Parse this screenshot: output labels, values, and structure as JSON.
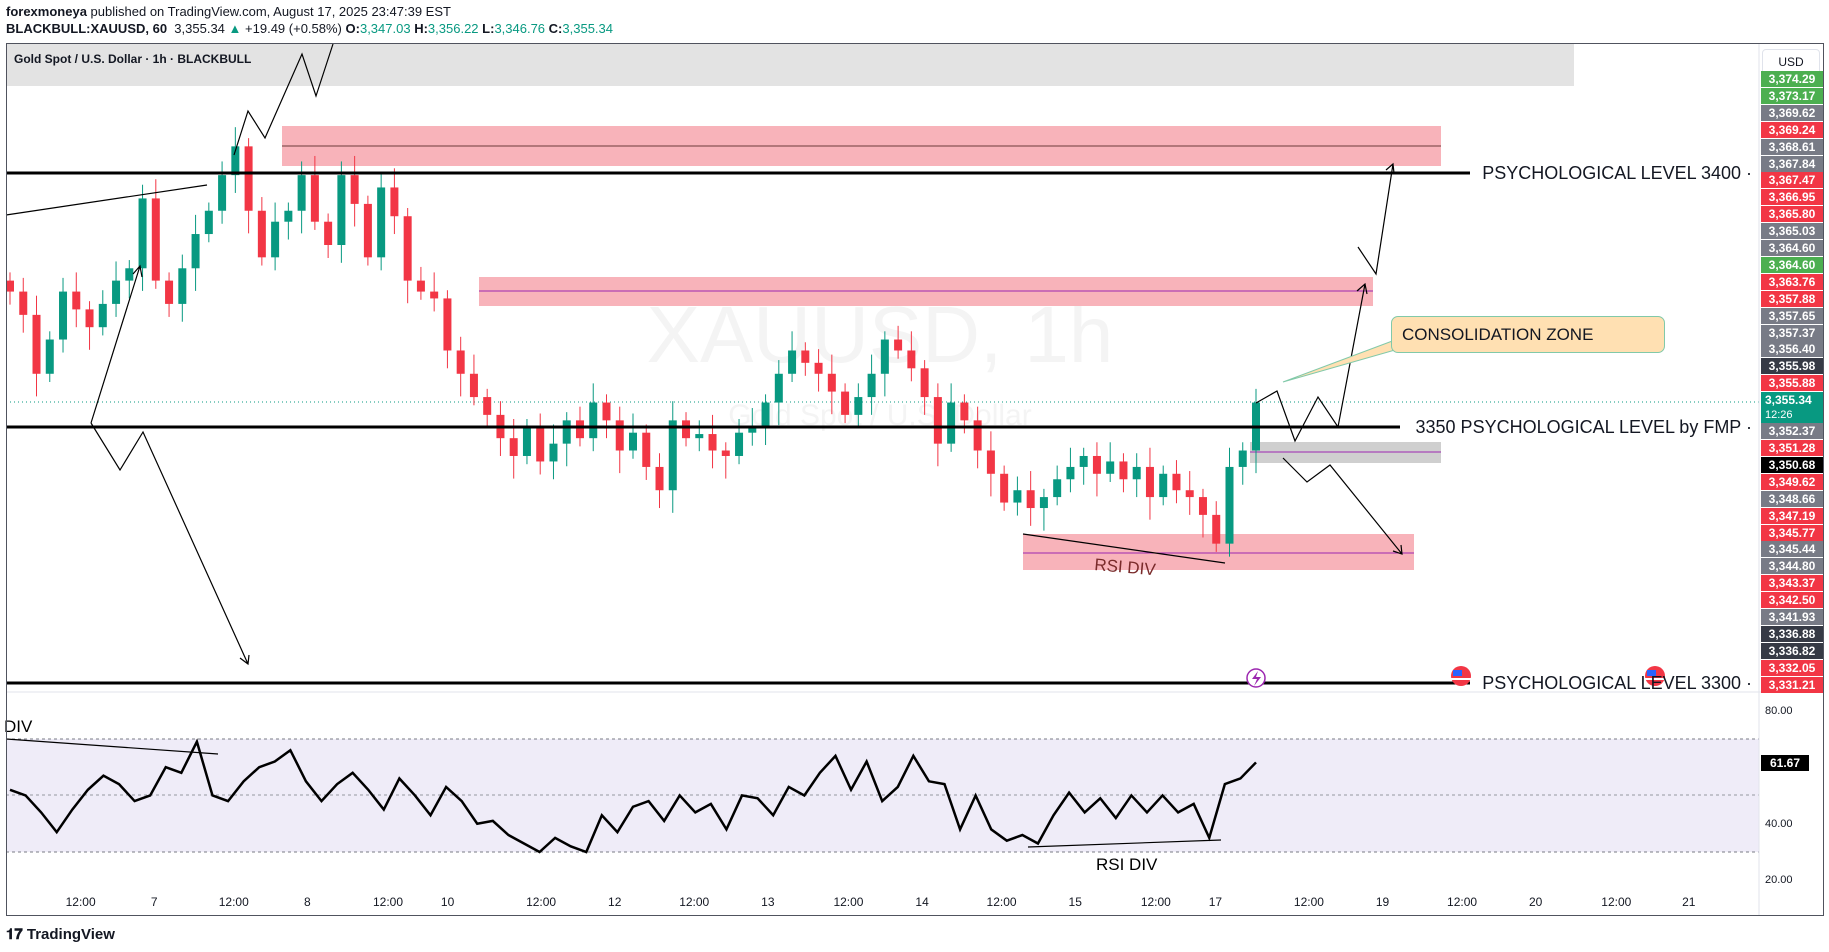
{
  "header": {
    "publisher": "forexmoneya",
    "published_text": "published on TradingView.com, August 17, 2025 23:47:39 EST",
    "symbol": "BLACKBULL:XAUUSD, 60",
    "last": "3,355.34",
    "change": "+19.49 (+0.58%)",
    "o_label": "O:",
    "o": "3,347.03",
    "h_label": "H:",
    "h": "3,356.22",
    "l_label": "L:",
    "l": "3,346.76",
    "c_label": "C:",
    "c": "3,355.34"
  },
  "legend": {
    "title": "Gold Spot / U.S. Dollar · 1h · BLACKBULL"
  },
  "watermark": {
    "symbol": "XAUUSD, 1h",
    "name": "Gold Spot / U.S. Dollar"
  },
  "currency": "USD",
  "annotations": {
    "level_3400": "PSYCHOLOGICAL LEVEL 3400 ·",
    "level_3350": "3350 PSYCHOLOGICAL LEVEL by FMP ·",
    "level_3300": "PSYCHOLOGICAL LEVEL 3300 ·",
    "consolidation": "CONSOLIDATION ZONE",
    "rsi_div_price": "RSI DIV",
    "rsi_div_rsi": "RSI DIV",
    "div_left": "DIV"
  },
  "colors": {
    "up": "#089981",
    "down": "#f23645",
    "zone_red": "#f8b3ba",
    "zone_gray": "#cfcfcf",
    "rsi_band": "#efecf8"
  },
  "price_labels": [
    {
      "v": "3,374.29",
      "c": "#4caf50"
    },
    {
      "v": "3,373.17",
      "c": "#4caf50"
    },
    {
      "v": "3,369.62",
      "c": "#787b86"
    },
    {
      "v": "3,369.24",
      "c": "#f23645"
    },
    {
      "v": "3,368.61",
      "c": "#787b86"
    },
    {
      "v": "3,367.84",
      "c": "#787b86"
    },
    {
      "v": "3,367.47",
      "c": "#f23645"
    },
    {
      "v": "3,366.95",
      "c": "#f23645"
    },
    {
      "v": "3,365.80",
      "c": "#f23645"
    },
    {
      "v": "3,365.03",
      "c": "#787b86"
    },
    {
      "v": "3,364.60",
      "c": "#787b86"
    },
    {
      "v": "3,364.60",
      "c": "#4caf50"
    },
    {
      "v": "3,363.76",
      "c": "#f23645"
    },
    {
      "v": "3,357.88",
      "c": "#f23645"
    },
    {
      "v": "3,357.65",
      "c": "#787b86"
    },
    {
      "v": "3,357.37",
      "c": "#787b86"
    },
    {
      "v": "3,356.40",
      "c": "#787b86"
    },
    {
      "v": "3,355.98",
      "c": "#363a45"
    },
    {
      "v": "3,355.88",
      "c": "#f23645"
    },
    {
      "v": "3,355.34",
      "c": "#089981",
      "sub": "12:26"
    },
    {
      "v": "3,352.37",
      "c": "#787b86"
    },
    {
      "v": "3,351.28",
      "c": "#f23645"
    },
    {
      "v": "3,350.68",
      "c": "#000000"
    },
    {
      "v": "3,349.62",
      "c": "#f23645"
    },
    {
      "v": "3,348.66",
      "c": "#787b86"
    },
    {
      "v": "3,347.19",
      "c": "#f23645"
    },
    {
      "v": "3,345.77",
      "c": "#f23645"
    },
    {
      "v": "3,345.44",
      "c": "#787b86"
    },
    {
      "v": "3,344.80",
      "c": "#787b86"
    },
    {
      "v": "3,343.37",
      "c": "#f23645"
    },
    {
      "v": "3,342.50",
      "c": "#f23645"
    },
    {
      "v": "3,341.93",
      "c": "#787b86"
    },
    {
      "v": "3,336.88",
      "c": "#363a45"
    },
    {
      "v": "3,336.82",
      "c": "#363a45"
    },
    {
      "v": "3,332.05",
      "c": "#f23645"
    },
    {
      "v": "3,331.21",
      "c": "#f23645"
    }
  ],
  "rsi_axis": [
    "80.00",
    "40.00",
    "20.00"
  ],
  "rsi_current": "61.67",
  "time_labels": [
    "12:00",
    "7",
    "12:00",
    "8",
    "12:00",
    "10",
    "12:00",
    "12",
    "12:00",
    "13",
    "12:00",
    "14",
    "12:00",
    "15",
    "12:00",
    "17",
    "12:00",
    "19",
    "12:00",
    "20",
    "12:00",
    "21"
  ],
  "branding": "TradingView",
  "chart_data": [
    {
      "type": "candlestick",
      "title": "Gold Spot / U.S. Dollar · 1h · BLACKBULL",
      "ylabel": "USD",
      "closes": [
        3363.4,
        3361.7,
        3357.4,
        3359.9,
        3363.4,
        3362.1,
        3360.8,
        3362.5,
        3364.2,
        3365.1,
        3370.2,
        3364.2,
        3362.5,
        3365.1,
        3367.6,
        3369.3,
        3371.9,
        3374.0,
        3369.3,
        3365.9,
        3368.5,
        3369.3,
        3371.9,
        3368.5,
        3366.8,
        3371.9,
        3369.8,
        3365.9,
        3371.0,
        3368.9,
        3364.2,
        3363.4,
        3362.9,
        3359.1,
        3357.4,
        3355.7,
        3354.4,
        3352.7,
        3351.4,
        3353.5,
        3351.0,
        3352.3,
        3354.0,
        3352.7,
        3355.3,
        3354.0,
        3351.8,
        3353.1,
        3350.6,
        3348.9,
        3354.0,
        3352.7,
        3353.0,
        3351.8,
        3351.4,
        3353.1,
        3353.5,
        3355.3,
        3357.4,
        3359.1,
        3358.2,
        3357.4,
        3356.1,
        3354.4,
        3355.7,
        3357.4,
        3359.9,
        3359.1,
        3357.8,
        3355.7,
        3352.3,
        3355.3,
        3354.0,
        3351.8,
        3350.1,
        3348.0,
        3348.9,
        3347.6,
        3348.4,
        3349.7,
        3350.6,
        3351.4,
        3350.1,
        3351.0,
        3349.7,
        3350.6,
        3348.4,
        3350.1,
        3348.9,
        3348.4,
        3347.1,
        3345.0,
        3350.6,
        3351.8,
        3355.3
      ],
      "last": 3355.34
    },
    {
      "type": "line",
      "title": "RSI",
      "ylim": [
        20,
        80
      ],
      "bands": [
        30,
        50,
        70
      ],
      "values": [
        52,
        50,
        44,
        37,
        45,
        52,
        57,
        54,
        48,
        50,
        60,
        58,
        69,
        50,
        48,
        55,
        60,
        62,
        66,
        55,
        48,
        54,
        58,
        52,
        45,
        56,
        50,
        43,
        53,
        48,
        40,
        41,
        36,
        33,
        30,
        35,
        32,
        30,
        43,
        37,
        46,
        48,
        41,
        50,
        44,
        47,
        38,
        50,
        49,
        43,
        53,
        50,
        58,
        64,
        52,
        62,
        48,
        53,
        64,
        55,
        54,
        38,
        50,
        38,
        34,
        36,
        33,
        43,
        51,
        44,
        49,
        42,
        50,
        44,
        50,
        44,
        47,
        35,
        54,
        56,
        61.67
      ]
    }
  ]
}
